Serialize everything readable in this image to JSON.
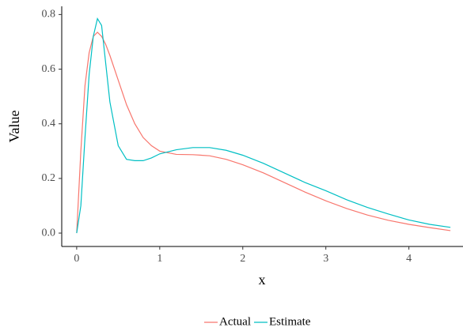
{
  "chart_data": {
    "type": "line",
    "x_label": "x",
    "y_label": "Value",
    "x": [
      0,
      0.05,
      0.1,
      0.15,
      0.2,
      0.25,
      0.3,
      0.35,
      0.4,
      0.5,
      0.6,
      0.7,
      0.8,
      0.9,
      1.0,
      1.2,
      1.4,
      1.6,
      1.8,
      2.0,
      2.25,
      2.5,
      2.75,
      3.0,
      3.25,
      3.5,
      3.75,
      4.0,
      4.25,
      4.5
    ],
    "series": [
      {
        "name": "Actual",
        "color": "#F8766D",
        "values": [
          0,
          0.3,
          0.54,
          0.66,
          0.72,
          0.735,
          0.72,
          0.69,
          0.65,
          0.56,
          0.47,
          0.4,
          0.35,
          0.32,
          0.3,
          0.288,
          0.287,
          0.283,
          0.27,
          0.25,
          0.22,
          0.185,
          0.15,
          0.118,
          0.09,
          0.066,
          0.047,
          0.032,
          0.02,
          0.009
        ]
      },
      {
        "name": "Estimate",
        "color": "#00BFC4",
        "values": [
          0,
          0.1,
          0.35,
          0.58,
          0.72,
          0.785,
          0.76,
          0.62,
          0.48,
          0.32,
          0.27,
          0.265,
          0.265,
          0.275,
          0.29,
          0.305,
          0.313,
          0.313,
          0.303,
          0.285,
          0.255,
          0.22,
          0.185,
          0.155,
          0.122,
          0.094,
          0.07,
          0.048,
          0.032,
          0.021
        ]
      }
    ],
    "xlim": [
      -0.18,
      4.68
    ],
    "ylim": [
      -0.049,
      0.83
    ],
    "xticks": [
      0,
      1,
      2,
      3,
      4
    ],
    "yticks": [
      {
        "value": 0,
        "label": "0.0"
      },
      0.2,
      0.4,
      0.6,
      0.8
    ],
    "legend": "bottom"
  }
}
